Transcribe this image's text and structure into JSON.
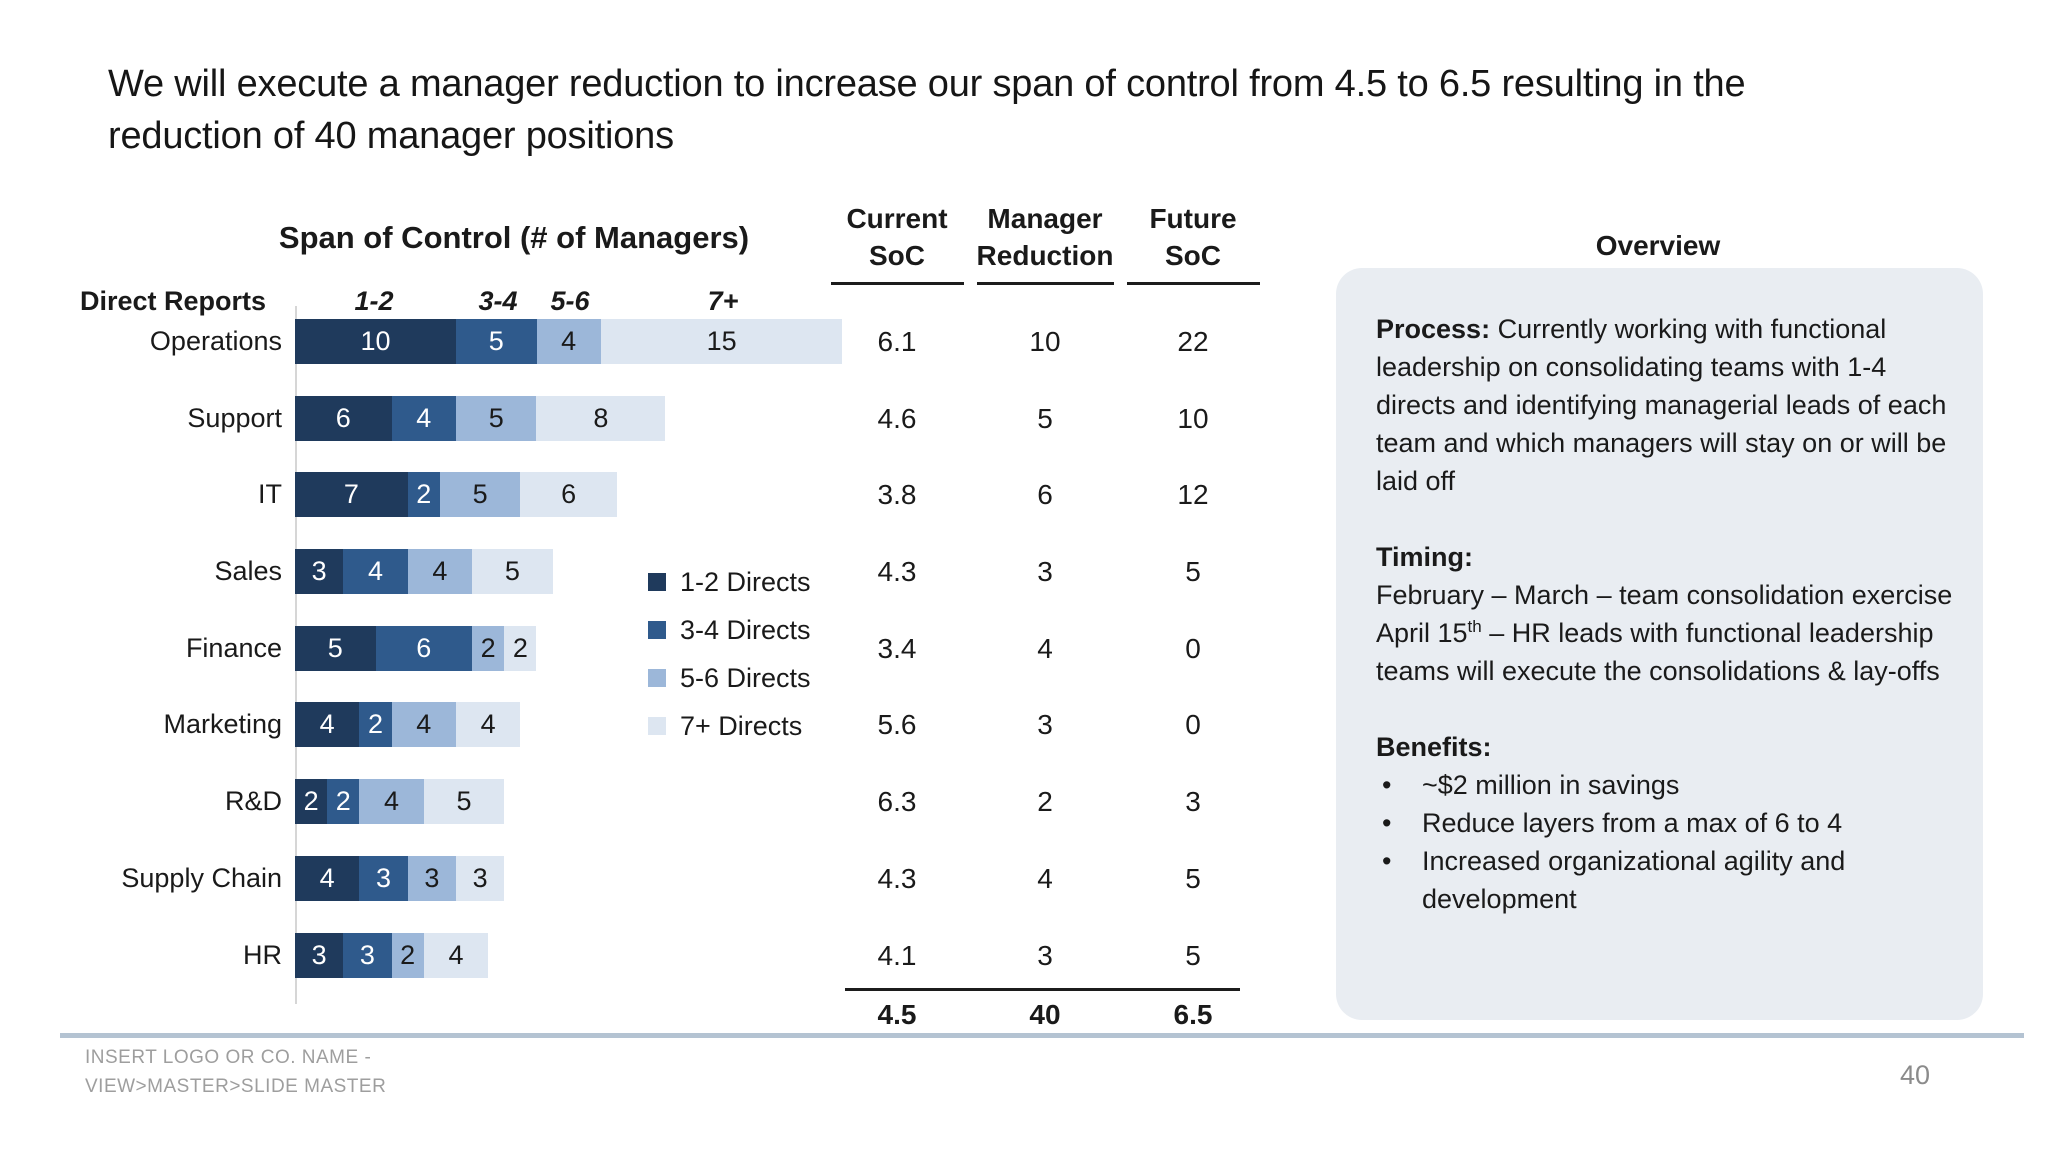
{
  "slide": {
    "title_line1": "We will execute a manager reduction to increase our span of control from 4.5 to 6.5 resulting in the",
    "title_line2": "reduction of 40 manager positions",
    "footer_line1": "INSERT LOGO OR CO. NAME -",
    "footer_line2": "VIEW>MASTER>SLIDE MASTER",
    "page_number": "40"
  },
  "chart": {
    "title": "Span of Control (# of Managers)",
    "row_header": "Direct Reports",
    "col_headers": [
      "1-2",
      "3-4",
      "5-6",
      "7+"
    ],
    "legend": [
      {
        "label": "1-2 Directs",
        "color": "#1f3a5c"
      },
      {
        "label": "3-4 Directs",
        "color": "#2f5a8c"
      },
      {
        "label": "5-6 Directs",
        "color": "#9cb7d9"
      },
      {
        "label": "7+ Directs",
        "color": "#dde6f1"
      }
    ]
  },
  "chart_data": {
    "type": "bar",
    "orientation": "horizontal",
    "stacked": true,
    "title": "Span of Control (# of Managers)",
    "xlabel": "# of Managers",
    "ylabel": "Direct Reports",
    "categories": [
      "Operations",
      "Support",
      "IT",
      "Sales",
      "Finance",
      "Marketing",
      "R&D",
      "Supply Chain",
      "HR"
    ],
    "series": [
      {
        "name": "1-2 Directs",
        "color": "#1f3a5c",
        "values": [
          10,
          6,
          7,
          3,
          5,
          4,
          2,
          4,
          3
        ]
      },
      {
        "name": "3-4 Directs",
        "color": "#2f5a8c",
        "values": [
          5,
          4,
          2,
          4,
          6,
          2,
          2,
          3,
          3
        ]
      },
      {
        "name": "5-6 Directs",
        "color": "#9cb7d9",
        "values": [
          4,
          5,
          5,
          4,
          2,
          4,
          4,
          3,
          2
        ]
      },
      {
        "name": "7+ Directs",
        "color": "#dde6f1",
        "values": [
          15,
          8,
          6,
          5,
          2,
          4,
          5,
          3,
          4
        ]
      }
    ],
    "legend_position": "right",
    "grid": false
  },
  "table": {
    "headers": [
      [
        "Current",
        "SoC"
      ],
      [
        "Manager",
        "Reduction"
      ],
      [
        "Future",
        "SoC"
      ]
    ],
    "rows": [
      [
        "6.1",
        "10",
        "22"
      ],
      [
        "4.6",
        "5",
        "10"
      ],
      [
        "3.8",
        "6",
        "12"
      ],
      [
        "4.3",
        "3",
        "5"
      ],
      [
        "3.4",
        "4",
        "0"
      ],
      [
        "5.6",
        "3",
        "0"
      ],
      [
        "6.3",
        "2",
        "3"
      ],
      [
        "4.3",
        "4",
        "5"
      ],
      [
        "4.1",
        "3",
        "5"
      ]
    ],
    "totals": [
      "4.5",
      "40",
      "6.5"
    ]
  },
  "overview": {
    "heading": "Overview",
    "process_label": "Process:",
    "process_text": " Currently working with functional leadership on consolidating teams with 1-4 directs and identifying managerial leads of each team and which managers will stay on or will be laid off",
    "timing_label": "Timing:",
    "timing_line1": "February – March – team consolidation exercise",
    "timing_april_pre": "April 15",
    "timing_april_sup": "th",
    "timing_april_post": " – HR leads with functional leadership teams will execute the consolidations & lay-offs",
    "benefits_label": "Benefits:",
    "bullets": [
      "~$2 million in savings",
      "Reduce layers from a max of 6 to 4",
      "Increased organizational agility and development"
    ]
  }
}
